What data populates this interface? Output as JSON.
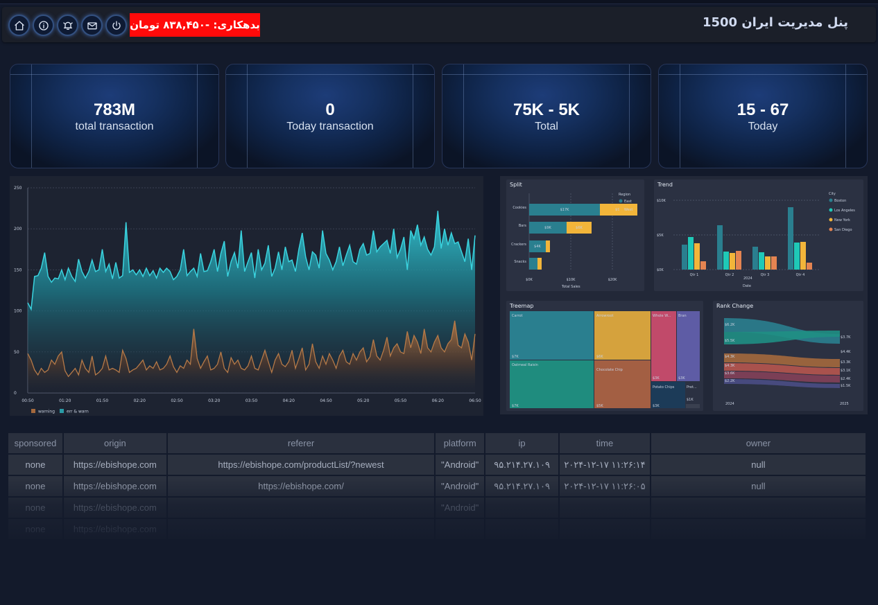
{
  "header": {
    "title": "پنل مدیریت ایران 1500",
    "debt": "بدهکاری: -۸۳۸,۴۵۰ تومان",
    "icons": [
      "home-icon",
      "info-icon",
      "bell-icon",
      "mail-icon",
      "power-icon"
    ]
  },
  "stats": [
    {
      "value": "783M",
      "label": "total transaction"
    },
    {
      "value": "0",
      "label": "Today transaction"
    },
    {
      "value": "75K - 5K",
      "label": "Total"
    },
    {
      "value": "15 - 67",
      "label": "Today"
    }
  ],
  "colors": {
    "teal": "#2fc1cc",
    "orange": "#a4693d",
    "badge": "#ff0a0a",
    "mini_teal": "#2a7f8f",
    "mini_cyan": "#1fc9b7",
    "mini_yellow": "#f2b53a",
    "mini_orange": "#e58451"
  },
  "chart_data": [
    {
      "type": "area",
      "yticks": [
        "0",
        "50",
        "100",
        "150",
        "200",
        "250"
      ],
      "ylim": [
        0,
        250
      ],
      "xticks": [
        "00:50",
        "01:20",
        "01:50",
        "02:20",
        "02:50",
        "03:20",
        "03:50",
        "04:20",
        "04:50",
        "05:20",
        "05:50",
        "06:20",
        "06:50"
      ],
      "legend": [
        "warning",
        "err & warn"
      ],
      "series": [
        {
          "name": "err & warn",
          "values": [
            110,
            102,
            142,
            143,
            152,
            171,
            142,
            135,
            140,
            139,
            150,
            138,
            152,
            142,
            136,
            163,
            148,
            140,
            148,
            162,
            148,
            150,
            175,
            148,
            157,
            139,
            159,
            140,
            143,
            208,
            147,
            150,
            144,
            150,
            142,
            152,
            143,
            149,
            140,
            152,
            147,
            152,
            148,
            138,
            142,
            150,
            175,
            143,
            148,
            152,
            142,
            170,
            148,
            149,
            160,
            175,
            148,
            170,
            185,
            142,
            160,
            171,
            152,
            198,
            148,
            160,
            171,
            140,
            175,
            150,
            158,
            180,
            142,
            152,
            172,
            150,
            178,
            160,
            162,
            148,
            175,
            195,
            166,
            150,
            172,
            168,
            152,
            198,
            170,
            162,
            150,
            160,
            178,
            155,
            168,
            180,
            160,
            157,
            175,
            182,
            168,
            170,
            198,
            172,
            178,
            182,
            186,
            170,
            200,
            165,
            175,
            190,
            150,
            198,
            188,
            205,
            180,
            190,
            175,
            168,
            178,
            222,
            176,
            200,
            180,
            195,
            182,
            184,
            172,
            160,
            188,
            150,
            192
          ]
        },
        {
          "name": "warning",
          "values": [
            48,
            40,
            28,
            22,
            30,
            25,
            28,
            40,
            35,
            45,
            50,
            27,
            20,
            25,
            30,
            22,
            40,
            30,
            25,
            45,
            22,
            25,
            30,
            45,
            28,
            30,
            28,
            25,
            52,
            42,
            25,
            28,
            30,
            35,
            40,
            28,
            33,
            30,
            38,
            28,
            30,
            35,
            45,
            32,
            25,
            33,
            30,
            40,
            35,
            78,
            42,
            30,
            38,
            45,
            28,
            30,
            35,
            50,
            30,
            25,
            43,
            35,
            40,
            30,
            28,
            33,
            45,
            30,
            28,
            40,
            52,
            38,
            25,
            40,
            48,
            35,
            32,
            38,
            52,
            30,
            42,
            55,
            28,
            35,
            60,
            38,
            30,
            45,
            35,
            48,
            40,
            30,
            45,
            52,
            38,
            35,
            48,
            40,
            50,
            55,
            38,
            44,
            65,
            45,
            40,
            52,
            68,
            45,
            55,
            60,
            50,
            48,
            75,
            55,
            70,
            62,
            48,
            78,
            55,
            50,
            62,
            70,
            55,
            50,
            60,
            65,
            88,
            58,
            55,
            72,
            62,
            40,
            72
          ]
        }
      ]
    },
    {
      "type": "bar",
      "title": "Split",
      "categories": [
        "Cookies",
        "Bars",
        "Crackers",
        "Snacks"
      ],
      "series": [
        {
          "name": "East",
          "values": [
            17,
            9,
            4,
            2
          ]
        },
        {
          "name": "West",
          "values": [
            9,
            6,
            1,
            1
          ]
        }
      ],
      "data_labels": [
        [
          "$17K",
          "$9K"
        ],
        [
          "$9K",
          "$6K"
        ],
        [
          "$4K",
          ""
        ],
        [
          "",
          ""
        ]
      ],
      "legend_title": "Region",
      "xticks": [
        "$0K",
        "$10K",
        "$20K"
      ],
      "xlabel": "Total Sales"
    },
    {
      "type": "bar",
      "title": "Trend",
      "categories": [
        "Qtr 1",
        "Qtr 2",
        "Qtr 3",
        "Qtr 4"
      ],
      "series": [
        {
          "name": "Boston",
          "values": [
            3.6,
            6.4,
            3.3,
            9.0
          ]
        },
        {
          "name": "Los Angeles",
          "values": [
            4.7,
            2.6,
            2.5,
            3.9
          ]
        },
        {
          "name": "New York",
          "values": [
            3.8,
            2.4,
            1.9,
            4.0
          ]
        },
        {
          "name": "San Diego",
          "values": [
            1.2,
            2.7,
            1.9,
            1.0
          ]
        }
      ],
      "legend_title": "City",
      "yticks": [
        "$0K",
        "$5K",
        "$10K"
      ],
      "ylim": [
        0,
        10
      ],
      "xlabel": "Date",
      "year": "2024"
    },
    {
      "type": "treemap",
      "title": "Treemap",
      "tiles": [
        {
          "label": "Carrot",
          "value": "$7K"
        },
        {
          "label": "Arrowroot",
          "value": "$6K"
        },
        {
          "label": "Whole W...",
          "value": "$3K"
        },
        {
          "label": "Bran",
          "value": "$3K"
        },
        {
          "label": "Oatmeal Raisin",
          "value": "$7K"
        },
        {
          "label": "Chocolate Chip",
          "value": "$5K"
        },
        {
          "label": "Potato Chips",
          "value": "$3K"
        },
        {
          "label": "Pret...",
          "value": "$1K"
        }
      ]
    },
    {
      "type": "area",
      "title": "Rank Change",
      "left_labels": [
        "$6.2K",
        "$5.5K",
        "$4.3K",
        "$4.3K",
        "$3.6K",
        "$2.2K"
      ],
      "right_labels": [
        "$3.7K",
        "$4.4K",
        "$3.3K",
        "$3.1K",
        "$2.4K",
        "$1.5K"
      ],
      "xticks": [
        "2024",
        "2025"
      ]
    }
  ],
  "table": {
    "columns": [
      "sponsored",
      "origin",
      "referer",
      "platform",
      "ip",
      "time",
      "owner"
    ],
    "rows": [
      [
        "none",
        "https://ebishope.com",
        "https://ebishope.com/productList/?newest",
        "\"Android\"",
        "۹۵.۲۱۴.۲۷.۱۰۹",
        "۲۰۲۴-۱۲-۱۷ ۱۱:۲۶:۱۴",
        "null"
      ],
      [
        "none",
        "https://ebishope.com",
        "https://ebishope.com/",
        "\"Android\"",
        "۹۵.۲۱۴.۲۷.۱۰۹",
        "۲۰۲۴-۱۲-۱۷ ۱۱:۲۶:۰۵",
        "null"
      ],
      [
        "none",
        "https://ebishope.com",
        "",
        "\"Android\"",
        "",
        "",
        ""
      ],
      [
        "none",
        "https://ebishope.com",
        "",
        "",
        "",
        "",
        ""
      ]
    ]
  }
}
